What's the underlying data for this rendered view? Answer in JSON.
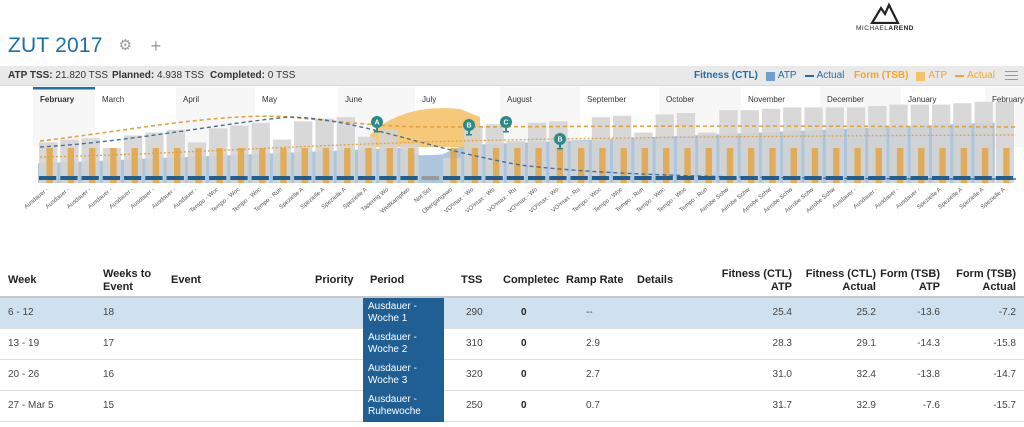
{
  "header": {
    "title": "ZUT 2017",
    "logo_name": "MICHAEL",
    "logo_name_bold": "AREND",
    "settings_icon": "gear-icon",
    "add_icon": "plus-icon"
  },
  "summary": {
    "atp_tss_label": "ATP TSS:",
    "atp_tss_value": "21.820 TSS",
    "planned_label": "Planned:",
    "planned_value": "4.938 TSS",
    "completed_label": "Completed:",
    "completed_value": "0 TSS"
  },
  "legend": {
    "fitness_label": "Fitness (CTL)",
    "fitness_atp": "ATP",
    "fitness_actual": "Actual",
    "form_label": "Form (TSB)",
    "form_atp": "ATP",
    "form_actual": "Actual",
    "colors": {
      "fitness": "#1d6fa8",
      "fitness_atp": "#6f9fcb",
      "form": "#f5a623",
      "form_atp": "#f5c26b"
    }
  },
  "chart_data": {
    "type": "bar",
    "months": [
      "February",
      "March",
      "April",
      "May",
      "June",
      "July",
      "August",
      "September",
      "October",
      "November",
      "December",
      "January",
      "February"
    ],
    "active_month": "February",
    "weeks": [
      "Ausdauer -",
      "Ausdauer -",
      "Ausdauer -",
      "Ausdauer -",
      "Ausdauer -",
      "Ausdauer -",
      "Ausdauer -",
      "Ausdauer -",
      "Tempo - Woc",
      "Tempo - Woc",
      "Tempo - Woc",
      "Tempo - Run",
      "Spezielle A",
      "Spezielle A",
      "Spezielle A",
      "Spezielle A",
      "Tapering Wo",
      "Wettkampfwo",
      "Not Set",
      "Übergangswo",
      "VO²max - Wo",
      "VO²max - Wo",
      "VO²max - Ru",
      "VO²max - Wo",
      "VO²max - Wo",
      "VO²max - Ru",
      "Tempo - Woc",
      "Tempo - Woc",
      "Tempo - Run",
      "Tempo - Woc",
      "Tempo - Woc",
      "Tempo - Run",
      "Aerobe Schw",
      "Aerobe Schw",
      "Aerobe Schw",
      "Aerobe Schw",
      "Aerobe Schw",
      "Aerobe Schw",
      "Ausdauer -",
      "Ausdauer -",
      "Ausdauer -",
      "Ausdauer -",
      "Spezielle A",
      "Spezielle A",
      "Spezielle A",
      "Spezielle A"
    ],
    "events": [
      "A",
      "B",
      "C",
      "B"
    ],
    "series": [
      {
        "name": "ATP",
        "values": [
          290,
          310,
          320,
          250,
          340,
          360,
          380,
          290,
          390,
          410,
          430,
          310,
          440,
          460,
          470,
          330,
          380,
          280,
          0,
          180,
          400,
          420,
          300,
          430,
          440,
          300,
          470,
          480,
          360,
          490,
          500,
          360,
          520,
          520,
          530,
          540,
          540,
          540,
          540,
          550,
          560,
          560,
          560,
          570,
          580,
          580
        ]
      },
      {
        "name": "Actual",
        "values": [
          25.2,
          29.1,
          32.4,
          32.9
        ]
      }
    ],
    "grid": false,
    "legend": "top-right"
  },
  "table": {
    "headers": {
      "week": "Week",
      "weeks_to_event": "Weeks to\nEvent",
      "event": "Event",
      "priority": "Priority",
      "period": "Period",
      "tss": "TSS",
      "completed": "Completec",
      "ramp_rate": "Ramp Rate",
      "details": "Details",
      "ctl_atp": "Fitness (CTL)\nATP",
      "ctl_actual": "Fitness (CTL)\nActual",
      "tsb_atp": "Form (TSB)\nATP",
      "tsb_actual": "Form (TSB)\nActual"
    },
    "rows": [
      {
        "week": "6 - 12",
        "weeks_to_event": "18",
        "period": "Ausdauer -\nWoche 1",
        "tss": "290",
        "completed": "0",
        "ramp_rate": "--",
        "ctl_atp": "25.4",
        "ctl_actual": "25.2",
        "tsb_atp": "-13.6",
        "tsb_actual": "-7.2"
      },
      {
        "week": "13 - 19",
        "weeks_to_event": "17",
        "period": "Ausdauer -\nWoche 2",
        "tss": "310",
        "completed": "0",
        "ramp_rate": "2.9",
        "ctl_atp": "28.3",
        "ctl_actual": "29.1",
        "tsb_atp": "-14.3",
        "tsb_actual": "-15.8"
      },
      {
        "week": "20 - 26",
        "weeks_to_event": "16",
        "period": "Ausdauer -\nWoche 3",
        "tss": "320",
        "completed": "0",
        "ramp_rate": "2.7",
        "ctl_atp": "31.0",
        "ctl_actual": "32.4",
        "tsb_atp": "-13.8",
        "tsb_actual": "-14.7"
      },
      {
        "week": "27 - Mar 5",
        "weeks_to_event": "15",
        "period": "Ausdauer -\nRuhewoche",
        "tss": "250",
        "completed": "0",
        "ramp_rate": "0.7",
        "ctl_atp": "31.7",
        "ctl_actual": "32.9",
        "tsb_atp": "-7.6",
        "tsb_actual": "-15.7"
      }
    ]
  }
}
